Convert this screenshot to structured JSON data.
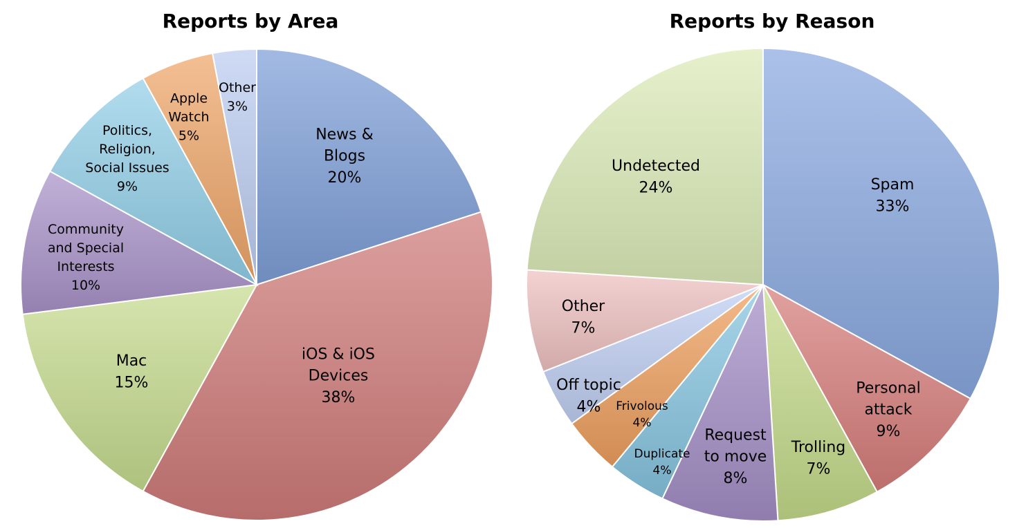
{
  "chart_data": [
    {
      "type": "pie",
      "title": "Reports by Area",
      "slices": [
        {
          "label": "News & Blogs",
          "label_lines": [
            "News &",
            "Blogs"
          ],
          "value": 20,
          "value_label": "20%",
          "color": "#7e9fd8"
        },
        {
          "label": "iOS & iOS Devices",
          "label_lines": [
            "iOS & iOS",
            "Devices"
          ],
          "value": 38,
          "value_label": "38%",
          "color": "#cf7b78"
        },
        {
          "label": "Mac",
          "label_lines": [
            "Mac"
          ],
          "value": 15,
          "value_label": "15%",
          "color": "#c6db8e"
        },
        {
          "label": "Community and Special Interests",
          "label_lines": [
            "Community",
            "and Special",
            "Interests"
          ],
          "value": 10,
          "value_label": "10%",
          "color": "#a993c9"
        },
        {
          "label": "Politics, Religion, Social Issues",
          "label_lines": [
            "Politics,",
            "Religion,",
            "Social Issues"
          ],
          "value": 9,
          "value_label": "9%",
          "color": "#92cfe8"
        },
        {
          "label": "Apple Watch",
          "label_lines": [
            "Apple",
            "Watch"
          ],
          "value": 5,
          "value_label": "5%",
          "color": "#eea669"
        },
        {
          "label": "Other",
          "label_lines": [
            "Other"
          ],
          "value": 3,
          "value_label": "3%",
          "color": "#bccdf1"
        }
      ]
    },
    {
      "type": "pie",
      "title": "Reports by Reason",
      "slices": [
        {
          "label": "Spam",
          "label_lines": [
            "Spam"
          ],
          "value": 33,
          "value_label": "33%",
          "color": "#8aa9e0"
        },
        {
          "label": "Personal attack",
          "label_lines": [
            "Personal",
            "attack"
          ],
          "value": 9,
          "value_label": "9%",
          "color": "#d67d7a"
        },
        {
          "label": "Trolling",
          "label_lines": [
            "Trolling"
          ],
          "value": 7,
          "value_label": "7%",
          "color": "#c4da8a"
        },
        {
          "label": "Request to move",
          "label_lines": [
            "Request",
            "to move"
          ],
          "value": 8,
          "value_label": "8%",
          "color": "#a48ec6"
        },
        {
          "label": "Duplicate",
          "label_lines": [
            "Duplicate"
          ],
          "value": 4,
          "value_label": "4%",
          "color": "#86c5e0"
        },
        {
          "label": "Frivolous",
          "label_lines": [
            "Frivolous"
          ],
          "value": 4,
          "value_label": "4%",
          "color": "#ee9f5e"
        },
        {
          "label": "Off topic",
          "label_lines": [
            "Off topic"
          ],
          "value": 4,
          "value_label": "4%",
          "color": "#bfcff2"
        },
        {
          "label": "Other",
          "label_lines": [
            "Other"
          ],
          "value": 7,
          "value_label": "7%",
          "color": "#eec1c0"
        },
        {
          "label": "Undetected",
          "label_lines": [
            "Undetected"
          ],
          "value": 24,
          "value_label": "24%",
          "color": "#dcebb8"
        }
      ]
    }
  ]
}
